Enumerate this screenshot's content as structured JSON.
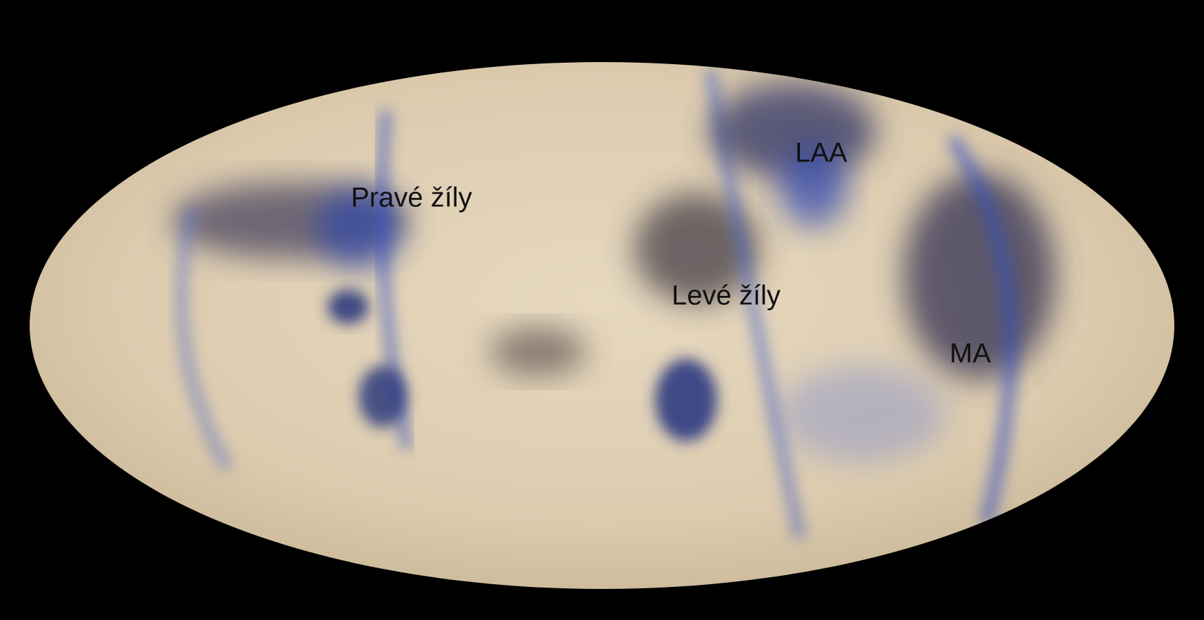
{
  "labels": {
    "right_veins": "Pravé žíly",
    "laa": "LAA",
    "left_veins": "Levé žíly",
    "ma": "MA"
  }
}
